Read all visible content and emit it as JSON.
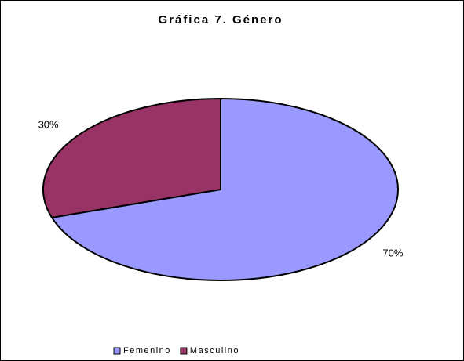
{
  "chart_data": {
    "type": "pie",
    "title": "Gráfica 7. Género",
    "categories": [
      "Femenino",
      "Masculino"
    ],
    "values": [
      70,
      30
    ],
    "value_labels": [
      "70%",
      "30%"
    ],
    "colors": [
      "#9999ff",
      "#993366"
    ],
    "legend": "bottom"
  }
}
